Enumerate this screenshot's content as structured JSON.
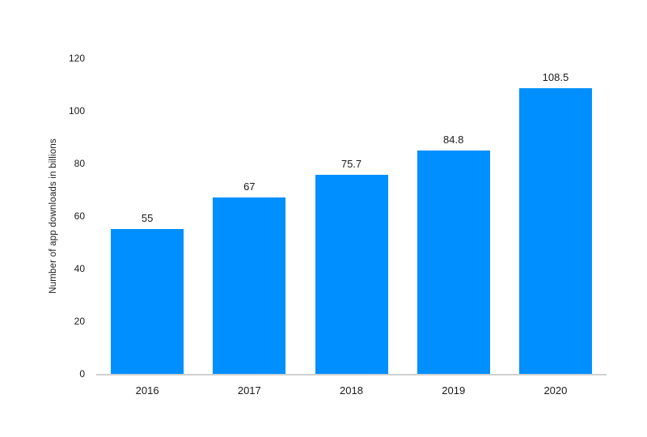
{
  "chart_data": {
    "type": "bar",
    "categories": [
      "2016",
      "2017",
      "2018",
      "2019",
      "2020"
    ],
    "values": [
      55,
      67,
      75.7,
      84.8,
      108.5
    ],
    "value_labels": [
      "55",
      "67",
      "75.7",
      "84.8",
      "108.5"
    ],
    "ylabel": "Number of app downloads in billions",
    "xlabel": "",
    "ylim": [
      0,
      120
    ],
    "yticks": [
      0,
      20,
      40,
      60,
      80,
      100,
      120
    ],
    "grid": "off",
    "legend": "none",
    "bar_color": "#008FFF",
    "axis_line_color": "#d0d0d0",
    "text_color": "#1a1a1a",
    "background_color": "#ffffff"
  }
}
